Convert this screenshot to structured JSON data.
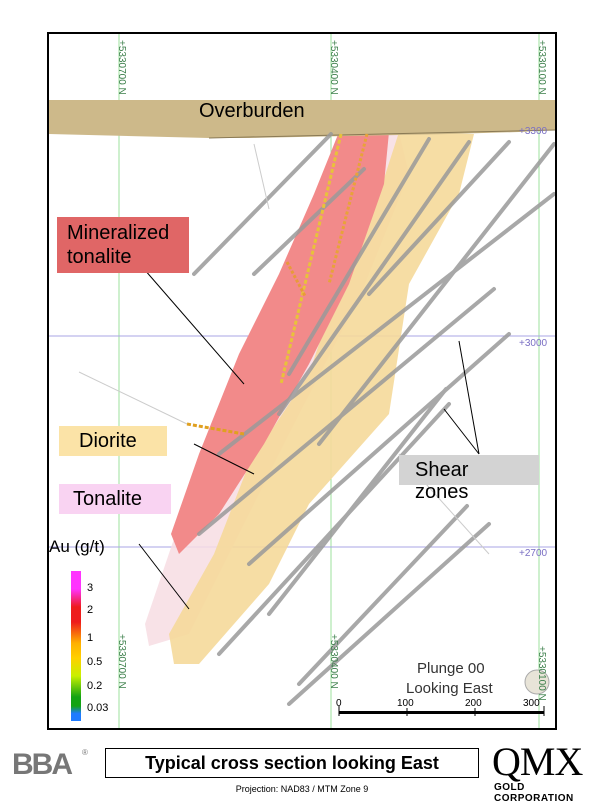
{
  "labels": {
    "overburden": "Overburden",
    "mineralized_tonalite": "Mineralized tonalite",
    "diorite": "Diorite",
    "tonalite": "Tonalite",
    "shear_zones": "Shear zones",
    "plunge": "Plunge 00",
    "looking_east": "Looking East"
  },
  "grid": {
    "northing": [
      "+5330700 N",
      "+5330400 N",
      "+5330100 N"
    ],
    "northing_bottom": [
      "+5330700 N",
      "+5330400 N",
      "+5330100 N"
    ],
    "elevation": [
      "+3300",
      "+3000",
      "+2700"
    ]
  },
  "legend": {
    "title": "Au (g/t)",
    "items": [
      {
        "value": "3",
        "color": "#ff33ff"
      },
      {
        "value": "2",
        "color": "#ee1c1c"
      },
      {
        "value": "1",
        "color": "#ffb000"
      },
      {
        "value": "0.5",
        "color": "#c8f000"
      },
      {
        "value": "0.2",
        "color": "#13a313"
      },
      {
        "value": "0.03",
        "color": "#1e7bff"
      }
    ]
  },
  "scale_bar": {
    "ticks": [
      "0",
      "100",
      "200",
      "300"
    ]
  },
  "footer": {
    "title": "Typical cross section looking East",
    "projection": "Projection: NAD83 / MTM Zone 9",
    "bba_logo": "BBA",
    "bba_reg": "®",
    "qmx_logo": "QMX",
    "qmx_sub": "GOLD CORPORATION"
  },
  "colors": {
    "overburden": "#cdb98a",
    "mineralized": "#f28a8a",
    "diorite": "#f5d99a",
    "tonalite": "#f7dde3",
    "shear": "#9a9a9a",
    "shear_label_bg": "#d3d3d3",
    "mineralized_label_bg": "#e06666",
    "diorite_label_bg": "#fbe3a7",
    "tonalite_label_bg": "#f9d3f2"
  }
}
